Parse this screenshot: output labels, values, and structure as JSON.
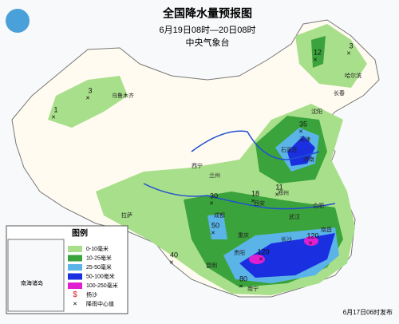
{
  "title": "全国降水量预报图",
  "subtitle": "6月19日08时—20日08时",
  "agency": "中央气象台",
  "legend": {
    "title": "图例",
    "items": [
      "0-10毫米",
      "10-25毫米",
      "25-50毫米",
      "50-100毫米",
      "100-250毫米",
      "扬沙",
      "降雨中心值"
    ]
  },
  "inset_label": "南海诸岛",
  "issued": "6月17日06时发布",
  "rain_centers": [
    3,
    1,
    12,
    3,
    35,
    30,
    18,
    11,
    50,
    40,
    80,
    120,
    120
  ],
  "cities": [
    "乌鲁木齐",
    "哈尔滨",
    "长春",
    "沈阳",
    "天津",
    "石家庄",
    "济南",
    "西宁",
    "兰州",
    "西安",
    "郑州",
    "合肥",
    "成都",
    "重庆",
    "拉萨",
    "贵阳",
    "昆明",
    "南宁",
    "长沙",
    "南昌",
    "武汉"
  ]
}
